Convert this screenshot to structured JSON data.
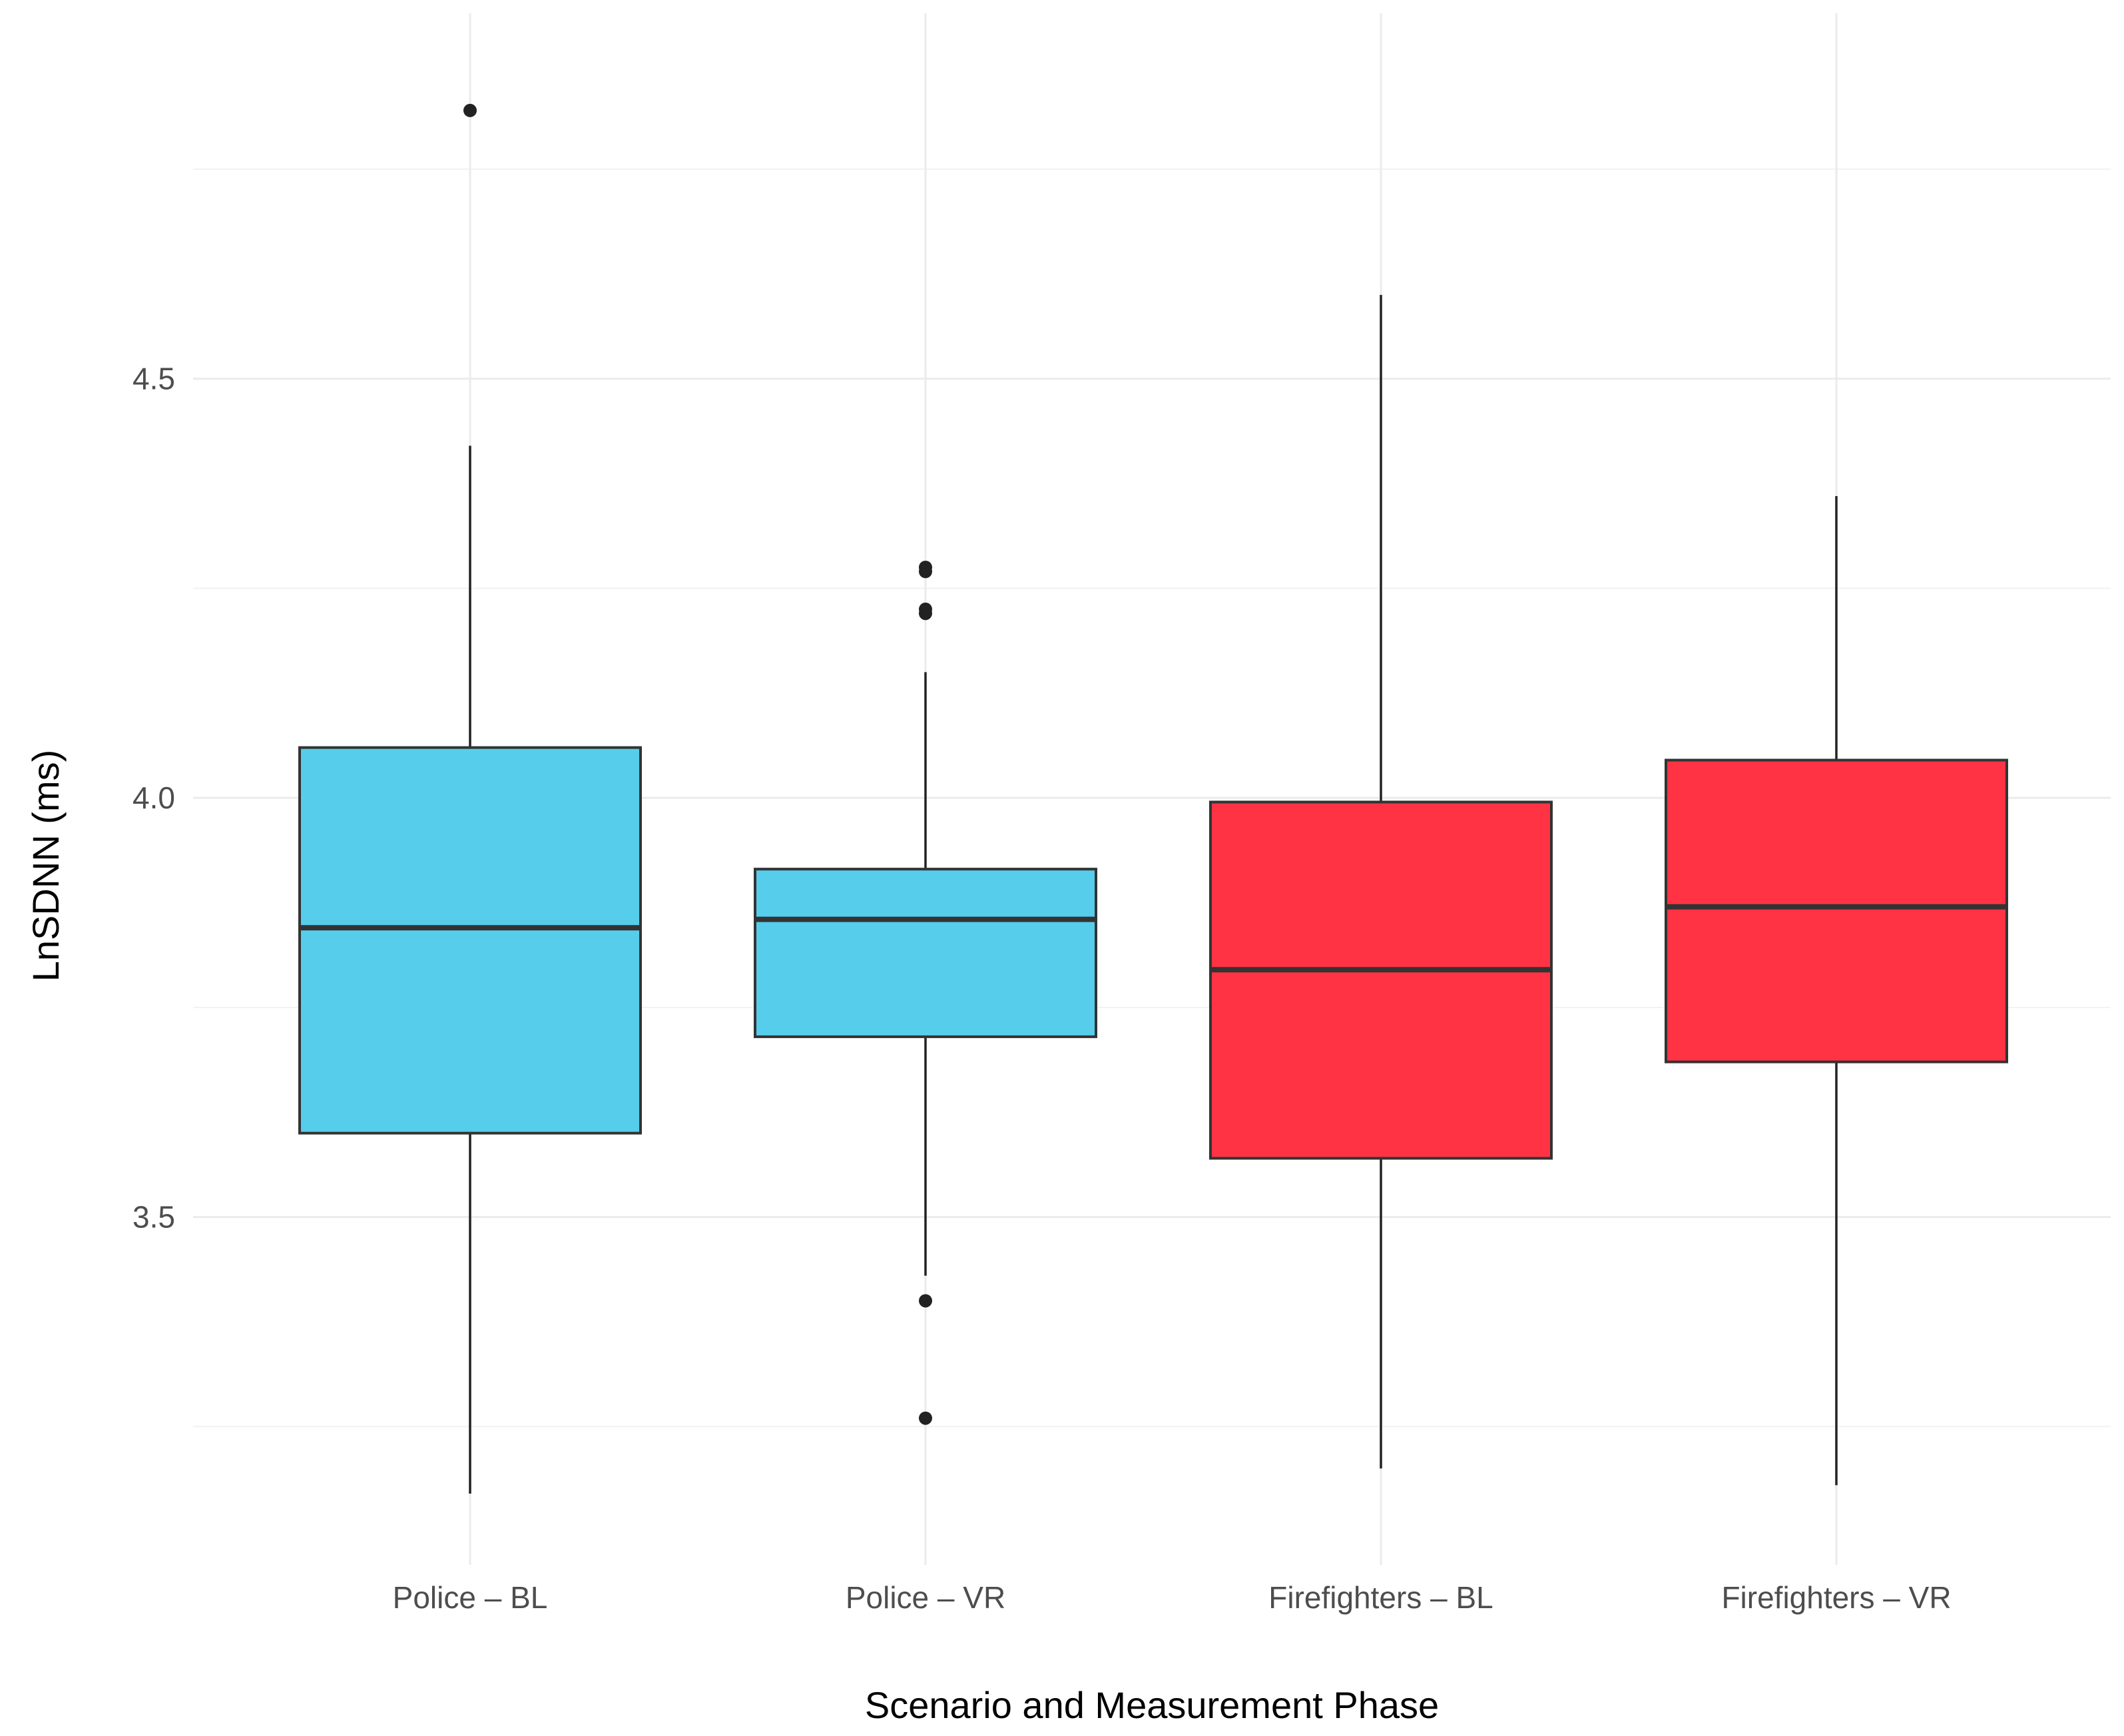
{
  "chart_data": {
    "type": "boxplot",
    "title": "",
    "xlabel": "Scenario and Measurement Phase",
    "ylabel": "LnSDNN (ms)",
    "ylim": [
      3.085,
      4.92
    ],
    "y_ticks": [
      3.5,
      4.0,
      4.5
    ],
    "y_tick_labels": [
      "3.5",
      "4.0",
      "4.5"
    ],
    "y_minor_gridlines": [
      3.25,
      3.75,
      4.25,
      4.75
    ],
    "grid": true,
    "legend": "none",
    "categories": [
      "Police – BL",
      "Police – VR",
      "Firefighters – BL",
      "Firefighters – VR"
    ],
    "boxes": [
      {
        "category": "Police – BL",
        "color": "#56CEEB",
        "whisker_low": 3.17,
        "q1": 3.6,
        "median": 3.845,
        "q3": 4.06,
        "whisker_high": 4.42,
        "outliers": [
          4.82
        ]
      },
      {
        "category": "Police – VR",
        "color": "#56CEEB",
        "whisker_low": 3.43,
        "q1": 3.715,
        "median": 3.855,
        "q3": 3.915,
        "whisker_high": 4.15,
        "outliers": [
          3.26,
          3.4,
          4.22,
          4.225,
          4.27,
          4.275
        ]
      },
      {
        "category": "Firefighters – BL",
        "color": "#FF3344",
        "whisker_low": 3.2,
        "q1": 3.57,
        "median": 3.795,
        "q3": 3.995,
        "whisker_high": 4.6,
        "outliers": []
      },
      {
        "category": "Firefighters – VR",
        "color": "#FF3344",
        "whisker_low": 3.18,
        "q1": 3.685,
        "median": 3.87,
        "q3": 4.045,
        "whisker_high": 4.36,
        "outliers": []
      }
    ]
  }
}
